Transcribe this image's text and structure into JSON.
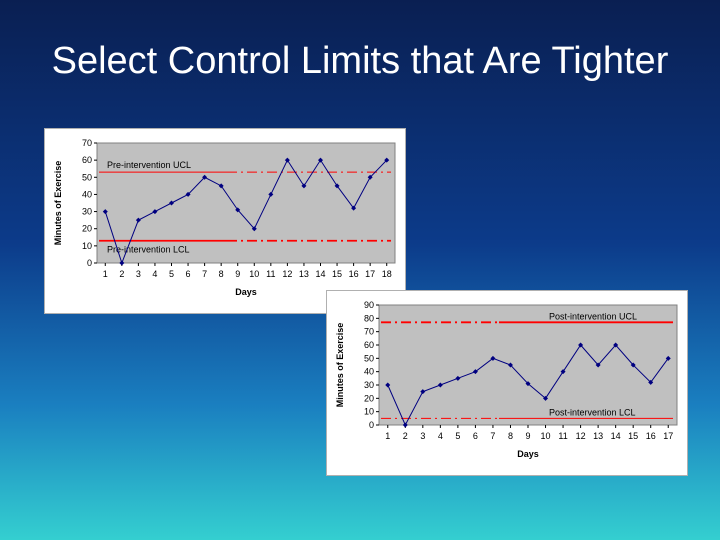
{
  "slide": {
    "title": "Select Control Limits that Are Tighter"
  },
  "chart_data": [
    {
      "type": "line",
      "xlabel": "Days",
      "ylabel": "Minutes of Exercise",
      "x": [
        1,
        2,
        3,
        4,
        5,
        6,
        7,
        8,
        9,
        10,
        11,
        12,
        13,
        14,
        15,
        16,
        17,
        18
      ],
      "x_tick_labels": [
        "1",
        "2",
        "3",
        "4",
        "5",
        "6",
        "7",
        "8",
        "9",
        "10",
        "11",
        "12",
        "13",
        "14",
        "15",
        "16",
        "17",
        "18"
      ],
      "ylim": [
        0,
        70
      ],
      "y_ticks": [
        0,
        10,
        20,
        30,
        40,
        50,
        60,
        70
      ],
      "series": [
        {
          "values": [
            30,
            0,
            25,
            30,
            35,
            40,
            50,
            45,
            31,
            20,
            40,
            60,
            45,
            60,
            45,
            32,
            50,
            60
          ]
        }
      ],
      "limits": [
        {
          "label": "Pre-intervention UCL",
          "value": 53
        },
        {
          "label": "Pre-intervention LCL",
          "value": 13
        }
      ],
      "colors": {
        "plot_bg": "#c0c0c0",
        "line": "#000080",
        "limit": "#ff0000"
      },
      "grid": false
    },
    {
      "type": "line",
      "xlabel": "Days",
      "ylabel": "Minutes of Exercise",
      "x": [
        1,
        2,
        3,
        4,
        5,
        6,
        7,
        8,
        9,
        10,
        11,
        12,
        13,
        14,
        15,
        16,
        17
      ],
      "x_tick_labels": [
        "1",
        "2",
        "3",
        "4",
        "5",
        "6",
        "7",
        "8",
        "9",
        "10",
        "11",
        "12",
        "13",
        "14",
        "15",
        "16",
        "17"
      ],
      "ylim": [
        0,
        90
      ],
      "y_ticks": [
        0,
        10,
        20,
        30,
        40,
        50,
        60,
        70,
        80,
        90
      ],
      "series": [
        {
          "values": [
            30,
            0,
            25,
            30,
            35,
            40,
            50,
            45,
            31,
            20,
            40,
            60,
            45,
            60,
            45,
            32,
            50
          ]
        }
      ],
      "limits": [
        {
          "label": "Post-intervention UCL",
          "value": 77
        },
        {
          "label": "Post-intervention LCL",
          "value": 5
        }
      ],
      "colors": {
        "plot_bg": "#c0c0c0",
        "line": "#000080",
        "limit": "#ff0000"
      },
      "grid": false
    }
  ]
}
